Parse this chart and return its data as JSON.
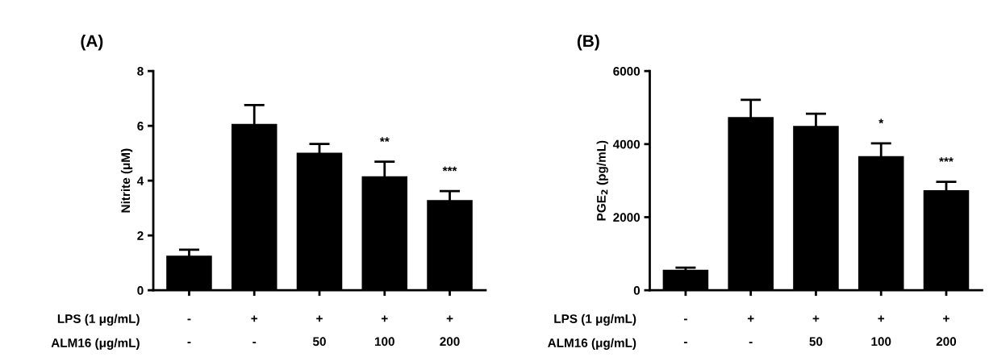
{
  "chart_data": [
    {
      "type": "bar",
      "title": "(A)",
      "ylabel": "Nitrite (μM)",
      "categories": [
        "-\n-",
        "+\n-",
        "+\n50",
        "+\n100",
        "+\n200"
      ],
      "values": [
        1.26,
        6.07,
        5.02,
        4.16,
        3.29
      ],
      "color": "#000000",
      "errors": [
        0.22,
        0.69,
        0.32,
        0.53,
        0.33
      ],
      "ylim": [
        0,
        8
      ],
      "yticks": [
        0,
        2,
        4,
        6,
        8
      ],
      "grid": false,
      "legend": false,
      "annotations": [
        "LPS (1 μg/mL)",
        "ALM16 (μg/mL)",
        {
          "text": "**",
          "x": "+\n100",
          "y": 4.16
        },
        {
          "text": "***",
          "x": "+\n200",
          "y": 3.29
        }
      ]
    },
    {
      "type": "bar",
      "title": "(B)",
      "ylabel": "PGE$_{2}$ (pg/mL)",
      "categories": [
        "-\n-",
        "+\n-",
        "+\n50",
        "+\n100",
        "+\n200"
      ],
      "values": [
        560,
        4740,
        4500,
        3670,
        2740
      ],
      "color": "#000000",
      "errors": [
        60,
        470,
        330,
        350,
        230
      ],
      "ylim": [
        0,
        6000
      ],
      "yticks": [
        0,
        2000,
        4000,
        6000
      ],
      "grid": false,
      "legend": false,
      "annotations": [
        "LPS (1 μg/mL)",
        "ALM16 (μg/mL)",
        {
          "text": "*",
          "x": "+\n100",
          "y": 3670
        },
        {
          "text": "***",
          "x": "+\n200",
          "y": 2740
        }
      ]
    }
  ]
}
